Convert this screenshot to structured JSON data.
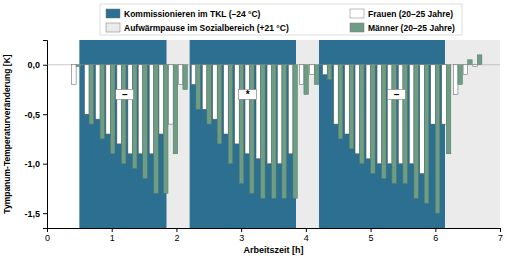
{
  "chart_data": {
    "type": "bar",
    "x_label": "Arbeitszeit [h]",
    "y_label": "Tympanum-Temperaturveränderung [K]",
    "legend": "top",
    "grid": false,
    "xlim": [
      0,
      7
    ],
    "xticks": [
      0,
      1,
      2,
      3,
      4,
      5,
      6,
      7
    ],
    "ylim": [
      -1.65,
      0.25
    ],
    "yticks": [
      {
        "value": 0,
        "label": "0,0"
      },
      {
        "value": -0.5,
        "label": "-0,5"
      },
      {
        "value": -1,
        "label": "-1,0"
      },
      {
        "value": -1.5,
        "label": "-1,5"
      }
    ],
    "phases": [
      {
        "name": "Kommissionieren im TKL (–24 °C)",
        "color": "#2d6f91",
        "spans": [
          [
            0.5,
            1.85
          ],
          [
            2.2,
            3.85
          ],
          [
            4.2,
            6.15
          ]
        ]
      },
      {
        "name": "Aufwärmpause im Sozialbereich (+21 °C)",
        "color": "#ebebeb",
        "spans": [
          [
            1.85,
            2.2
          ],
          [
            3.85,
            4.2
          ],
          [
            6.15,
            7
          ]
        ]
      }
    ],
    "x": [
      0.45,
      0.65,
      0.82,
      0.98,
      1.15,
      1.32,
      1.48,
      1.65,
      1.8,
      1.95,
      2.1,
      2.3,
      2.47,
      2.63,
      2.8,
      2.97,
      3.13,
      3.3,
      3.47,
      3.63,
      3.8,
      3.97,
      4.13,
      4.33,
      4.5,
      4.67,
      4.83,
      5.0,
      5.17,
      5.33,
      5.5,
      5.67,
      5.83,
      6.0,
      6.17,
      6.35,
      6.5,
      6.65
    ],
    "series": [
      {
        "name": "Frauen (20–25 Jahre)",
        "color": "#ffffff",
        "values": [
          -0.2,
          -0.5,
          -0.55,
          -0.7,
          -0.8,
          -0.9,
          -0.9,
          -0.9,
          -0.7,
          -0.6,
          -0.2,
          -0.2,
          -0.45,
          -0.55,
          -0.7,
          -0.8,
          -0.9,
          -0.95,
          -1.0,
          -1.0,
          -0.9,
          -0.2,
          -0.1,
          -0.1,
          -0.6,
          -0.7,
          -0.9,
          -0.95,
          -1.0,
          -1.0,
          -1.0,
          -1.0,
          -1.1,
          -0.6,
          -0.6,
          -0.3,
          -0.1,
          -0.02
        ]
      },
      {
        "name": "Männer (20–25 Jahre)",
        "color": "#6f9c84",
        "values": [
          -0.02,
          -0.6,
          -0.75,
          -0.9,
          -1.0,
          -1.05,
          -1.15,
          -1.3,
          -1.3,
          -0.9,
          -0.25,
          -0.45,
          -0.6,
          -0.8,
          -1.0,
          -1.2,
          -1.3,
          -1.35,
          -1.35,
          -1.35,
          -1.35,
          -0.3,
          -0.2,
          -0.15,
          -0.75,
          -0.85,
          -1.0,
          -1.1,
          -1.15,
          -1.2,
          -1.2,
          -1.35,
          -1.4,
          -1.5,
          -0.9,
          -0.2,
          0.05,
          0.1
        ]
      }
    ],
    "annotations": [
      {
        "text": "–",
        "x": 1.2,
        "y": -0.3
      },
      {
        "text": "*",
        "x": 3.1,
        "y": -0.3
      },
      {
        "text": "–",
        "x": 5.4,
        "y": -0.3
      }
    ]
  }
}
